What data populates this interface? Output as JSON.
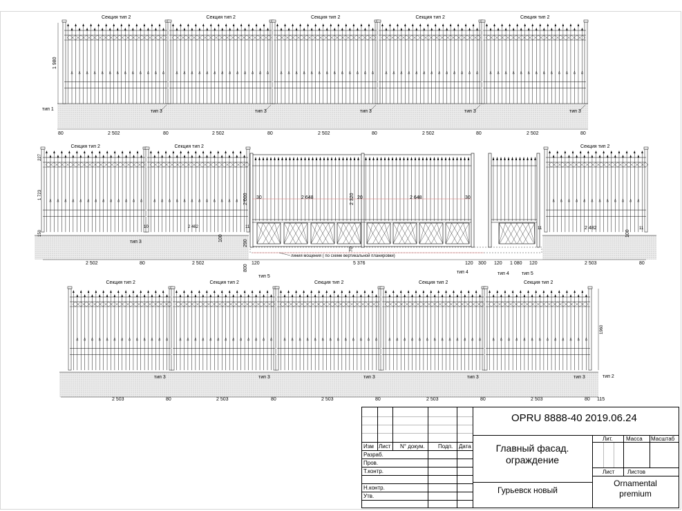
{
  "row1": {
    "sections": [
      "Секция тип 2",
      "Секция тип 2",
      "Секция тип 2",
      "Секция тип 2",
      "Секция тип 2"
    ],
    "height_label": "1 980",
    "type1": "тип 1",
    "type3": [
      "тип 3",
      "тип 3",
      "тип 3",
      "тип 3",
      "тип 3"
    ],
    "dims": [
      "80",
      "2 502",
      "80",
      "2 502",
      "80",
      "2 502",
      "80",
      "2 502",
      "80",
      "2 502",
      "80"
    ]
  },
  "row2": {
    "sections": [
      "Секция тип 2",
      "Секция тип 2",
      "Секция тип 2"
    ],
    "heights_left": [
      "227",
      "1 723",
      "150"
    ],
    "gap_labels": [
      "10",
      "2 462",
      "11",
      "11",
      "2 482",
      "11"
    ],
    "gate_dims": [
      "2 000",
      "2 320",
      "30",
      "2 648",
      "20",
      "2 648",
      "30",
      "290",
      "70",
      "800"
    ],
    "side_100": [
      "100",
      "100"
    ],
    "pavement_note": "линия мощения ( по схеме вертикальной планировки)",
    "types": [
      "тип 3",
      "тип 5",
      "тип 4",
      "тип 4",
      "тип 5"
    ],
    "dims": [
      "2 502",
      "80",
      "2 502",
      "120",
      "5 376",
      "120",
      "300",
      "120",
      "1 080",
      "120",
      "2 503",
      "80"
    ]
  },
  "row3": {
    "sections": [
      "Секция тип 2",
      "Секция тип 2",
      "Секция тип 2",
      "Секция тип 2",
      "Секция тип 2"
    ],
    "height_label": "1960",
    "type2": "тип 2",
    "type3": [
      "тип 3",
      "тип 3",
      "тип 3",
      "тип 3",
      "тип 3"
    ],
    "dims": [
      "2 503",
      "80",
      "2 503",
      "80",
      "2 503",
      "80",
      "2 503",
      "80",
      "2 503",
      "80",
      "115"
    ]
  },
  "title_block": {
    "code": "OPRU 8888-40 2019.06.24",
    "col_headers": [
      "Изм",
      "Лист",
      "N° докум.",
      "Подп.",
      "Дата"
    ],
    "roles": [
      "Разраб.",
      "Пров.",
      "Т.контр.",
      "Н.контр.",
      "Утв."
    ],
    "title_line1": "Главный фасад.",
    "title_line2": "ограждение",
    "location": "Гурьевск новый",
    "lit": "Лит.",
    "mass": "Масса",
    "scale": "Масштаб",
    "sheet": "Лист",
    "sheets": "Листов",
    "company_line1": "Ornamental",
    "company_line2": "premium"
  }
}
